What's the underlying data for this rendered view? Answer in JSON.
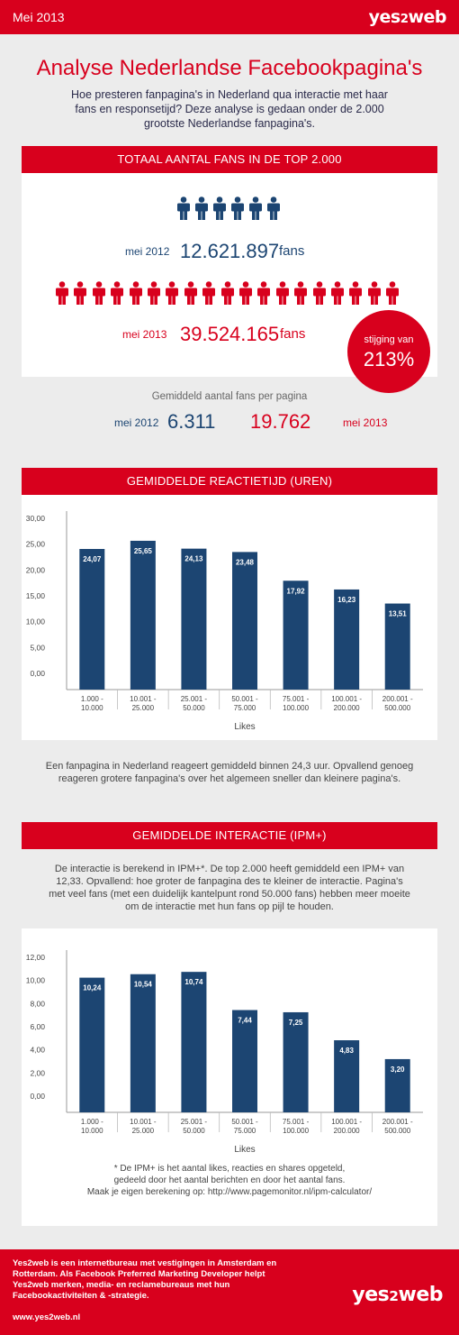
{
  "header": {
    "date": "Mei 2013",
    "brand_main": "yes",
    "brand_two": "2",
    "brand_end": "web"
  },
  "title": "Analyse Nederlandse Facebookpagina's",
  "intro": "Hoe presteren fanpagina's in Nederland qua interactie met haar fans en responsetijd? Deze analyse is gedaan onder de 2.000 grootste Nederlandse fanpagina's.",
  "fans_section": {
    "heading": "TOTAAL AANTAL FANS IN DE TOP 2.000",
    "row2012": {
      "label": "mei 2012",
      "value": "12.621.897",
      "unit": "fans",
      "icons": 6
    },
    "row2013": {
      "label": "mei 2013",
      "value": "39.524.165",
      "unit": "fans",
      "icons": 19
    },
    "increase_label": "stijging van",
    "increase_value": "213%",
    "avg_label": "Gemiddeld aantal fans per pagina",
    "avg2012_label": "mei 2012",
    "avg2012_value": "6.311",
    "avg2013_value": "19.762",
    "avg2013_label": "mei 2013"
  },
  "reaction_section": {
    "heading": "GEMIDDELDE REACTIETIJD (UREN)",
    "caption": "Een fanpagina in Nederland reageert gemiddeld binnen 24,3 uur. Opvallend genoeg reageren grotere fanpagina's over het algemeen sneller dan kleinere pagina's."
  },
  "interaction_section": {
    "heading": "GEMIDDELDE INTERACTIE (IPM+)",
    "intro": "De interactie is berekend in IPM+*. De top 2.000 heeft gemiddeld een IPM+ van 12,33. Opvallend: hoe groter de fanpagina des te kleiner de interactie. Pagina's met veel fans (met een duidelijk kantelpunt rond 50.000 fans) hebben meer moeite om de interactie met hun fans op pijl te houden.",
    "footnote1": "* De IPM+ is het aantal likes, reacties en shares opgeteld,",
    "footnote2": "gedeeld door het aantal berichten en door het aantal fans.",
    "footnote3": "Maak je eigen berekening op: http://www.pagemonitor.nl/ipm-calculator/"
  },
  "chart_data": [
    {
      "type": "bar",
      "title": "GEMIDDELDE REACTIETIJD (UREN)",
      "xlabel": "Likes",
      "ylabel": "",
      "categories": [
        [
          "1.000 -",
          "10.000"
        ],
        [
          "10.001 -",
          "25.000"
        ],
        [
          "25.001 -",
          "50.000"
        ],
        [
          "50.001 -",
          "75.000"
        ],
        [
          "75.001 -",
          "100.000"
        ],
        [
          "100.001 -",
          "200.000"
        ],
        [
          "200.001 -",
          "500.000"
        ]
      ],
      "values": [
        24.07,
        25.65,
        24.13,
        23.48,
        17.92,
        16.23,
        13.51
      ],
      "value_labels": [
        "24,07",
        "25,65",
        "24,13",
        "23,48",
        "17,92",
        "16,23",
        "13,51"
      ],
      "yticks": [
        "0,00",
        "5,00",
        "10,00",
        "15,00",
        "20,00",
        "25,00",
        "30,00"
      ],
      "ylim": [
        0,
        30
      ],
      "bar_color": "#1c4572",
      "grid": false
    },
    {
      "type": "bar",
      "title": "GEMIDDELDE INTERACTIE (IPM+)",
      "xlabel": "Likes",
      "ylabel": "",
      "categories": [
        [
          "1.000 -",
          "10.000"
        ],
        [
          "10.001 -",
          "25.000"
        ],
        [
          "25.001 -",
          "50.000"
        ],
        [
          "50.001 -",
          "75.000"
        ],
        [
          "75.001 -",
          "100.000"
        ],
        [
          "100.001 -",
          "200.000"
        ],
        [
          "200.001 -",
          "500.000"
        ]
      ],
      "values": [
        10.24,
        10.54,
        10.74,
        7.44,
        7.25,
        4.83,
        3.2
      ],
      "value_labels": [
        "10,24",
        "10,54",
        "10,74",
        "7,44",
        "7,25",
        "4,83",
        "3,20"
      ],
      "yticks": [
        "0,00",
        "2,00",
        "4,00",
        "6,00",
        "8,00",
        "10,00",
        "12,00"
      ],
      "ylim": [
        0,
        12
      ],
      "bar_color": "#1c4572",
      "grid": false
    }
  ],
  "footer": {
    "text": "Yes2web is een internetbureau met vestigingen in Amsterdam en Rotterdam. Als Facebook Preferred Marketing Developer helpt Yes2web merken, media- en reclamebureaus met hun Facebookactiviteiten & -strategie.",
    "url": "www.yes2web.nl"
  },
  "colors": {
    "accent": "#d8001d",
    "bar": "#1c4572",
    "panel_grey": "#ececec"
  }
}
